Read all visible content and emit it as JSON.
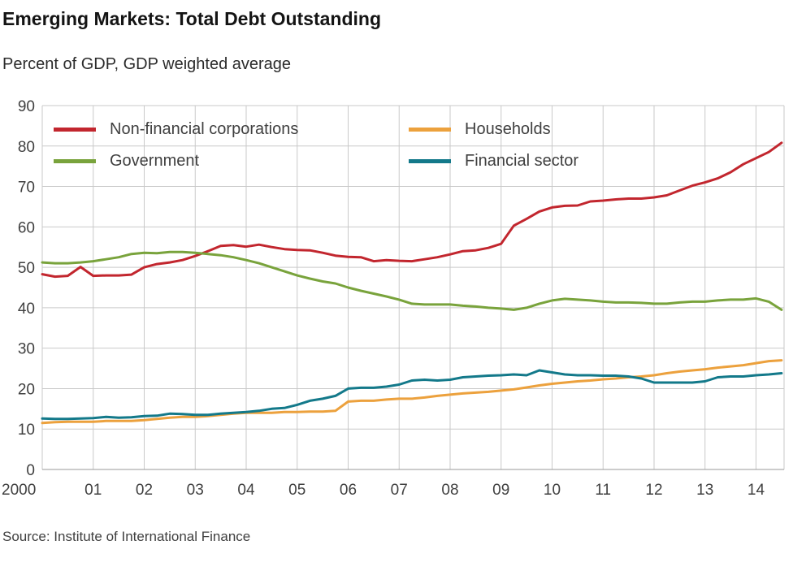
{
  "chart_data": {
    "type": "line",
    "title": "Emerging Markets: Total Debt Outstanding",
    "subtitle": "Percent of GDP, GDP weighted average",
    "source": "Source: Institute of International Finance",
    "xlabel": "",
    "ylabel": "",
    "ylim": [
      0,
      90
    ],
    "yticks": [
      0,
      10,
      20,
      30,
      40,
      50,
      60,
      70,
      80,
      90
    ],
    "xticks": [
      {
        "v": 2000,
        "label": "2000"
      },
      {
        "v": 2001,
        "label": "01"
      },
      {
        "v": 2002,
        "label": "02"
      },
      {
        "v": 2003,
        "label": "03"
      },
      {
        "v": 2004,
        "label": "04"
      },
      {
        "v": 2005,
        "label": "05"
      },
      {
        "v": 2006,
        "label": "06"
      },
      {
        "v": 2007,
        "label": "07"
      },
      {
        "v": 2008,
        "label": "08"
      },
      {
        "v": 2009,
        "label": "09"
      },
      {
        "v": 2010,
        "label": "10"
      },
      {
        "v": 2011,
        "label": "11"
      },
      {
        "v": 2012,
        "label": "12"
      },
      {
        "v": 2013,
        "label": "13"
      },
      {
        "v": 2014,
        "label": "14"
      }
    ],
    "grid": true,
    "legend_position": "top-inside",
    "x": [
      2000.0,
      2000.25,
      2000.5,
      2000.75,
      2001.0,
      2001.25,
      2001.5,
      2001.75,
      2002.0,
      2002.25,
      2002.5,
      2002.75,
      2003.0,
      2003.25,
      2003.5,
      2003.75,
      2004.0,
      2004.25,
      2004.5,
      2004.75,
      2005.0,
      2005.25,
      2005.5,
      2005.75,
      2006.0,
      2006.25,
      2006.5,
      2006.75,
      2007.0,
      2007.25,
      2007.5,
      2007.75,
      2008.0,
      2008.25,
      2008.5,
      2008.75,
      2009.0,
      2009.25,
      2009.5,
      2009.75,
      2010.0,
      2010.25,
      2010.5,
      2010.75,
      2011.0,
      2011.25,
      2011.5,
      2011.75,
      2012.0,
      2012.25,
      2012.5,
      2012.75,
      2013.0,
      2013.25,
      2013.5,
      2013.75,
      2014.0,
      2014.25,
      2014.5
    ],
    "series": [
      {
        "name": "Non-financial corporations",
        "color": "#c2262e",
        "values": [
          48.3,
          47.7,
          47.9,
          50.1,
          47.9,
          48.0,
          48.0,
          48.2,
          50.0,
          50.8,
          51.2,
          51.8,
          52.8,
          54.0,
          55.3,
          55.5,
          55.1,
          55.6,
          55.0,
          54.5,
          54.3,
          54.2,
          53.6,
          52.9,
          52.6,
          52.5,
          51.5,
          51.8,
          51.6,
          51.5,
          52.0,
          52.5,
          53.2,
          54.0,
          54.2,
          54.8,
          55.8,
          60.3,
          62.0,
          63.8,
          64.8,
          65.2,
          65.3,
          66.3,
          66.5,
          66.8,
          67.0,
          67.0,
          67.3,
          67.8,
          69.0,
          70.2,
          71.0,
          72.0,
          73.5,
          75.5,
          77.0,
          78.5,
          80.8
        ]
      },
      {
        "name": "Government",
        "color": "#79a33c",
        "values": [
          51.2,
          51.0,
          51.0,
          51.2,
          51.5,
          52.0,
          52.5,
          53.3,
          53.6,
          53.5,
          53.8,
          53.8,
          53.6,
          53.3,
          53.0,
          52.5,
          51.8,
          51.0,
          50.0,
          49.0,
          48.0,
          47.2,
          46.5,
          46.0,
          45.0,
          44.2,
          43.5,
          42.8,
          42.0,
          41.0,
          40.8,
          40.8,
          40.8,
          40.5,
          40.3,
          40.0,
          39.8,
          39.5,
          40.0,
          41.0,
          41.8,
          42.2,
          42.0,
          41.8,
          41.5,
          41.3,
          41.3,
          41.2,
          41.0,
          41.0,
          41.3,
          41.5,
          41.5,
          41.8,
          42.0,
          42.0,
          42.3,
          41.5,
          39.5
        ]
      },
      {
        "name": "Households",
        "color": "#eca13d",
        "values": [
          11.5,
          11.7,
          11.8,
          11.8,
          11.8,
          12.0,
          12.0,
          12.0,
          12.2,
          12.5,
          12.8,
          13.0,
          13.0,
          13.2,
          13.5,
          13.8,
          14.0,
          14.0,
          14.0,
          14.2,
          14.2,
          14.3,
          14.3,
          14.5,
          16.8,
          17.0,
          17.0,
          17.3,
          17.5,
          17.5,
          17.8,
          18.2,
          18.5,
          18.8,
          19.0,
          19.2,
          19.5,
          19.8,
          20.3,
          20.8,
          21.2,
          21.5,
          21.8,
          22.0,
          22.3,
          22.5,
          22.8,
          23.0,
          23.3,
          23.8,
          24.2,
          24.5,
          24.8,
          25.2,
          25.5,
          25.8,
          26.3,
          26.8,
          27.0
        ]
      },
      {
        "name": "Financial sector",
        "color": "#13798a",
        "values": [
          12.6,
          12.5,
          12.5,
          12.6,
          12.7,
          13.0,
          12.8,
          12.9,
          13.2,
          13.3,
          13.8,
          13.7,
          13.5,
          13.5,
          13.8,
          14.0,
          14.2,
          14.5,
          15.0,
          15.2,
          16.0,
          17.0,
          17.5,
          18.2,
          20.0,
          20.2,
          20.2,
          20.5,
          21.0,
          22.0,
          22.2,
          22.0,
          22.2,
          22.8,
          23.0,
          23.2,
          23.3,
          23.5,
          23.3,
          24.5,
          24.0,
          23.5,
          23.3,
          23.3,
          23.2,
          23.2,
          23.0,
          22.5,
          21.5,
          21.5,
          21.5,
          21.5,
          21.8,
          22.8,
          23.0,
          23.0,
          23.3,
          23.5,
          23.8
        ]
      }
    ]
  }
}
